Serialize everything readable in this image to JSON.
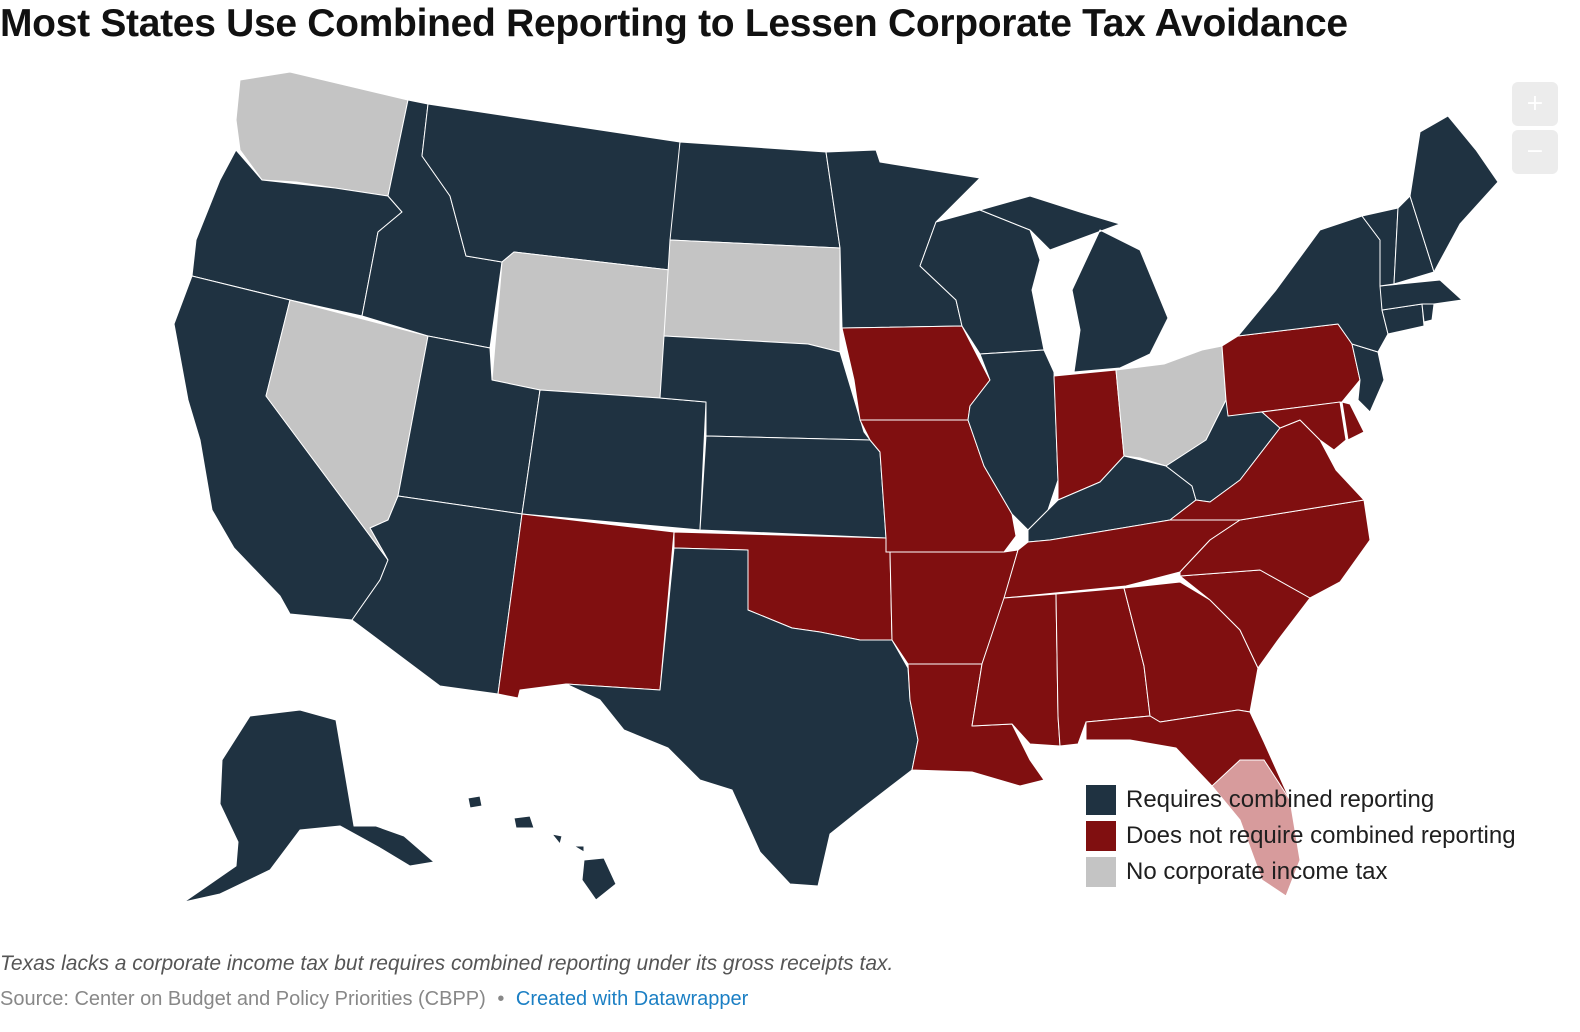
{
  "title": "Most States Use Combined Reporting to Lessen Corporate Tax Avoidance",
  "colors": {
    "requires": "#1f3241",
    "not_require": "#800f10",
    "no_tax": "#c4c4c4",
    "highlight": "#d79b9c",
    "border": "#ffffff",
    "zoom_button": "#ececec",
    "link": "#1b7fc4"
  },
  "zoom": {
    "in_label": "+",
    "out_label": "−"
  },
  "legend": [
    {
      "key": "requires",
      "label": "Requires combined reporting"
    },
    {
      "key": "not_require",
      "label": "Does not require combined reporting"
    },
    {
      "key": "no_tax",
      "label": "No corporate income tax"
    }
  ],
  "states": {
    "WA": "no_tax",
    "OR": "requires",
    "CA": "requires",
    "NV": "no_tax",
    "ID": "requires",
    "MT": "requires",
    "WY": "no_tax",
    "UT": "requires",
    "AZ": "requires",
    "CO": "requires",
    "NM": "not_require",
    "ND": "requires",
    "SD": "no_tax",
    "NE": "requires",
    "KS": "requires",
    "OK": "not_require",
    "TX": "requires",
    "MN": "requires",
    "IA": "not_require",
    "MO": "not_require",
    "AR": "not_require",
    "LA": "not_require",
    "WI": "requires",
    "IL": "requires",
    "MI": "requires",
    "IN": "not_require",
    "OH": "no_tax",
    "KY": "requires",
    "TN": "not_require",
    "MS": "not_require",
    "AL": "not_require",
    "GA": "not_require",
    "FL": "not_require",
    "SC": "not_require",
    "NC": "not_require",
    "VA": "not_require",
    "WV": "requires",
    "PA": "not_require",
    "MD": "not_require",
    "DE": "not_require",
    "NJ": "requires",
    "NY": "requires",
    "CT": "requires",
    "RI": "requires",
    "MA": "requires",
    "VT": "requires",
    "NH": "requires",
    "ME": "requires",
    "AK": "requires",
    "HI": "requires",
    "DC": "requires"
  },
  "note": "Texas lacks a corporate income tax but requires combined reporting under its gross receipts tax.",
  "source": {
    "text": "Source: Center on Budget and Policy Priorities (CBPP)",
    "separator": "•",
    "link_text": "Created with Datawrapper"
  }
}
